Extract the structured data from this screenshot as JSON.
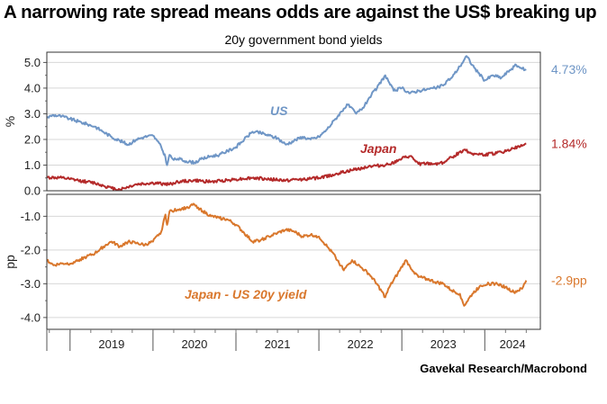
{
  "title": "A narrowing rate spread means odds are against the US$ breaking up",
  "subtitle": "20y government bond yields",
  "source": "Gavekal Research/Macrobond",
  "chart_data": [
    {
      "type": "line",
      "ylabel": "%",
      "ylim": [
        0,
        5.4
      ],
      "yticks": [
        "0.0",
        "1.0",
        "2.0",
        "3.0",
        "4.0",
        "5.0"
      ],
      "grid": true,
      "series": [
        {
          "name": "US",
          "color": "#6f96c6",
          "end_label": "4.73%",
          "points": [
            [
              2018.72,
              2.85
            ],
            [
              2018.8,
              2.95
            ],
            [
              2018.9,
              2.9
            ],
            [
              2019.0,
              2.8
            ],
            [
              2019.1,
              2.7
            ],
            [
              2019.2,
              2.6
            ],
            [
              2019.3,
              2.5
            ],
            [
              2019.4,
              2.3
            ],
            [
              2019.5,
              2.1
            ],
            [
              2019.6,
              1.95
            ],
            [
              2019.7,
              1.8
            ],
            [
              2019.8,
              2.0
            ],
            [
              2019.9,
              2.1
            ],
            [
              2020.0,
              2.15
            ],
            [
              2020.05,
              1.95
            ],
            [
              2020.1,
              1.7
            ],
            [
              2020.15,
              1.3
            ],
            [
              2020.17,
              1.0
            ],
            [
              2020.2,
              1.4
            ],
            [
              2020.25,
              1.2
            ],
            [
              2020.3,
              1.25
            ],
            [
              2020.4,
              1.15
            ],
            [
              2020.5,
              1.1
            ],
            [
              2020.6,
              1.25
            ],
            [
              2020.7,
              1.35
            ],
            [
              2020.8,
              1.4
            ],
            [
              2020.9,
              1.55
            ],
            [
              2021.0,
              1.7
            ],
            [
              2021.1,
              2.0
            ],
            [
              2021.2,
              2.3
            ],
            [
              2021.3,
              2.25
            ],
            [
              2021.4,
              2.15
            ],
            [
              2021.5,
              2.05
            ],
            [
              2021.6,
              1.8
            ],
            [
              2021.7,
              1.95
            ],
            [
              2021.8,
              2.1
            ],
            [
              2021.9,
              2.0
            ],
            [
              2022.0,
              2.1
            ],
            [
              2022.1,
              2.4
            ],
            [
              2022.2,
              2.8
            ],
            [
              2022.3,
              3.2
            ],
            [
              2022.35,
              3.35
            ],
            [
              2022.45,
              3.0
            ],
            [
              2022.55,
              3.3
            ],
            [
              2022.6,
              3.6
            ],
            [
              2022.7,
              4.0
            ],
            [
              2022.8,
              4.5
            ],
            [
              2022.85,
              4.2
            ],
            [
              2022.9,
              3.9
            ],
            [
              2023.0,
              4.0
            ],
            [
              2023.1,
              3.8
            ],
            [
              2023.2,
              3.9
            ],
            [
              2023.3,
              3.95
            ],
            [
              2023.4,
              4.0
            ],
            [
              2023.5,
              4.1
            ],
            [
              2023.55,
              4.3
            ],
            [
              2023.6,
              4.4
            ],
            [
              2023.7,
              4.85
            ],
            [
              2023.78,
              5.25
            ],
            [
              2023.85,
              4.9
            ],
            [
              2023.92,
              4.6
            ],
            [
              2024.0,
              4.3
            ],
            [
              2024.1,
              4.5
            ],
            [
              2024.2,
              4.4
            ],
            [
              2024.3,
              4.7
            ],
            [
              2024.38,
              4.9
            ],
            [
              2024.45,
              4.75
            ],
            [
              2024.5,
              4.73
            ]
          ]
        },
        {
          "name": "Japan",
          "color": "#b42a2a",
          "end_label": "1.84%",
          "points": [
            [
              2018.72,
              0.52
            ],
            [
              2018.9,
              0.5
            ],
            [
              2019.0,
              0.45
            ],
            [
              2019.1,
              0.4
            ],
            [
              2019.2,
              0.35
            ],
            [
              2019.3,
              0.3
            ],
            [
              2019.4,
              0.2
            ],
            [
              2019.5,
              0.1
            ],
            [
              2019.6,
              0.05
            ],
            [
              2019.65,
              0.1
            ],
            [
              2019.8,
              0.25
            ],
            [
              2020.0,
              0.3
            ],
            [
              2020.2,
              0.25
            ],
            [
              2020.3,
              0.35
            ],
            [
              2020.5,
              0.4
            ],
            [
              2020.7,
              0.35
            ],
            [
              2021.0,
              0.45
            ],
            [
              2021.2,
              0.5
            ],
            [
              2021.4,
              0.45
            ],
            [
              2021.6,
              0.4
            ],
            [
              2021.8,
              0.45
            ],
            [
              2022.0,
              0.5
            ],
            [
              2022.2,
              0.65
            ],
            [
              2022.4,
              0.8
            ],
            [
              2022.6,
              0.95
            ],
            [
              2022.8,
              1.0
            ],
            [
              2022.95,
              1.15
            ],
            [
              2023.0,
              1.25
            ],
            [
              2023.1,
              1.35
            ],
            [
              2023.2,
              1.05
            ],
            [
              2023.4,
              1.05
            ],
            [
              2023.5,
              1.1
            ],
            [
              2023.6,
              1.3
            ],
            [
              2023.75,
              1.6
            ],
            [
              2023.85,
              1.45
            ],
            [
              2024.0,
              1.4
            ],
            [
              2024.2,
              1.5
            ],
            [
              2024.35,
              1.65
            ],
            [
              2024.45,
              1.75
            ],
            [
              2024.5,
              1.84
            ]
          ]
        }
      ]
    },
    {
      "type": "line",
      "ylabel": "pp",
      "ylim": [
        -4.35,
        -0.35
      ],
      "yticks": [
        "-4.0",
        "-3.0",
        "-2.0",
        "-1.0"
      ],
      "grid": true,
      "series": [
        {
          "name": "Japan - US 20y yield",
          "color": "#d9772c",
          "end_label": "-2.9pp",
          "points": [
            [
              2018.72,
              -2.3
            ],
            [
              2018.8,
              -2.45
            ],
            [
              2018.9,
              -2.4
            ],
            [
              2019.0,
              -2.4
            ],
            [
              2019.1,
              -2.3
            ],
            [
              2019.2,
              -2.2
            ],
            [
              2019.3,
              -2.1
            ],
            [
              2019.4,
              -1.9
            ],
            [
              2019.5,
              -1.75
            ],
            [
              2019.6,
              -1.9
            ],
            [
              2019.7,
              -1.75
            ],
            [
              2019.8,
              -1.8
            ],
            [
              2019.9,
              -1.85
            ],
            [
              2020.0,
              -1.75
            ],
            [
              2020.1,
              -1.45
            ],
            [
              2020.15,
              -0.95
            ],
            [
              2020.17,
              -1.25
            ],
            [
              2020.2,
              -0.85
            ],
            [
              2020.3,
              -0.8
            ],
            [
              2020.4,
              -0.75
            ],
            [
              2020.5,
              -0.65
            ],
            [
              2020.6,
              -0.85
            ],
            [
              2020.7,
              -1.0
            ],
            [
              2020.8,
              -1.05
            ],
            [
              2020.9,
              -1.1
            ],
            [
              2021.0,
              -1.25
            ],
            [
              2021.1,
              -1.5
            ],
            [
              2021.2,
              -1.75
            ],
            [
              2021.3,
              -1.7
            ],
            [
              2021.4,
              -1.6
            ],
            [
              2021.5,
              -1.5
            ],
            [
              2021.6,
              -1.4
            ],
            [
              2021.7,
              -1.45
            ],
            [
              2021.8,
              -1.6
            ],
            [
              2021.9,
              -1.55
            ],
            [
              2022.0,
              -1.6
            ],
            [
              2022.1,
              -1.9
            ],
            [
              2022.2,
              -2.2
            ],
            [
              2022.3,
              -2.6
            ],
            [
              2022.4,
              -2.3
            ],
            [
              2022.5,
              -2.5
            ],
            [
              2022.6,
              -2.7
            ],
            [
              2022.7,
              -3.0
            ],
            [
              2022.8,
              -3.4
            ],
            [
              2022.85,
              -3.1
            ],
            [
              2022.95,
              -2.7
            ],
            [
              2023.05,
              -2.3
            ],
            [
              2023.1,
              -2.5
            ],
            [
              2023.2,
              -2.8
            ],
            [
              2023.3,
              -2.85
            ],
            [
              2023.4,
              -2.95
            ],
            [
              2023.5,
              -3.0
            ],
            [
              2023.6,
              -3.2
            ],
            [
              2023.7,
              -3.3
            ],
            [
              2023.75,
              -3.65
            ],
            [
              2023.85,
              -3.3
            ],
            [
              2023.95,
              -3.05
            ],
            [
              2024.05,
              -3.0
            ],
            [
              2024.15,
              -3.0
            ],
            [
              2024.25,
              -3.1
            ],
            [
              2024.35,
              -3.25
            ],
            [
              2024.45,
              -3.15
            ],
            [
              2024.5,
              -2.9
            ]
          ]
        }
      ]
    }
  ],
  "x_axis": {
    "range": [
      2018.72,
      2024.67
    ],
    "tick_labels": [
      "2019",
      "2020",
      "2021",
      "2022",
      "2023",
      "2024"
    ]
  }
}
